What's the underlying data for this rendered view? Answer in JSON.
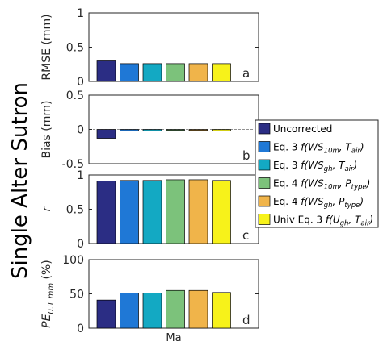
{
  "figure": {
    "side_title": "Single Alter Sutron"
  },
  "legend_labels": [
    {
      "plain": "Uncorrected"
    },
    {
      "prefix": "Eq. 3 ",
      "f": "f(WS",
      "sub1": "10m",
      "mid": ", T",
      "sub2": "air",
      "end": ")"
    },
    {
      "prefix": "Eq. 3 ",
      "f": "f(WS",
      "sub1": "gh",
      "mid": ", T",
      "sub2": "air",
      "end": ")"
    },
    {
      "prefix": "Eq. 4 ",
      "f": "f(WS",
      "sub1": "10m",
      "mid": ", P",
      "sub2": "type",
      "end": ")"
    },
    {
      "prefix": "Eq. 4 ",
      "f": "f(WS",
      "sub1": "gh",
      "mid": ", P",
      "sub2": "type",
      "end": ")"
    },
    {
      "prefix": "Univ Eq. 3 ",
      "f": "f(U",
      "sub1": "gh",
      "mid": ", T",
      "sub2": "air",
      "end": ")"
    }
  ],
  "colors": [
    "#2b2d84",
    "#1f78d6",
    "#13a9c3",
    "#7cc27b",
    "#f0b44a",
    "#f7f21a"
  ],
  "panels": [
    {
      "letter": "a",
      "ylabel": "RMSE (mm)",
      "ylabel_main": "",
      "ylabel_sub": "",
      "ylabel_end": "",
      "ylim": [
        0,
        1
      ],
      "yticks": [
        "0",
        "0.5",
        "1"
      ],
      "ytick_values": [
        0,
        0.5,
        1
      ]
    },
    {
      "letter": "b",
      "ylabel": "Bias (mm)",
      "ylabel_main": "",
      "ylabel_sub": "",
      "ylabel_end": "",
      "ylim": [
        -0.5,
        0.5
      ],
      "yticks": [
        "-0.5",
        "0",
        "0.5"
      ],
      "ytick_values": [
        -0.5,
        0,
        0.5
      ]
    },
    {
      "letter": "c",
      "ylabel": "r",
      "ylabel_main": "",
      "ylabel_sub": "",
      "ylabel_end": "",
      "ylim": [
        0,
        1
      ],
      "yticks": [
        "0",
        "0.5",
        "1"
      ],
      "ytick_values": [
        0,
        0.5,
        1
      ]
    },
    {
      "letter": "d",
      "ylabel": "",
      "ylabel_main": "PE",
      "ylabel_sub": "0.1 mm",
      "ylabel_end": " (%)",
      "ylim": [
        0,
        100
      ],
      "yticks": [
        "0",
        "50",
        "100"
      ],
      "ytick_values": [
        0,
        50,
        100
      ]
    }
  ],
  "x_category": "Ma",
  "chart_data": [
    {
      "type": "bar",
      "panel": "a",
      "ylabel": "RMSE (mm)",
      "ylim": [
        0,
        1
      ],
      "categories": [
        "Ma"
      ],
      "series": [
        {
          "name": "Uncorrected",
          "values": [
            0.3
          ]
        },
        {
          "name": "Eq. 3 f(WS10m, Tair)",
          "values": [
            0.26
          ]
        },
        {
          "name": "Eq. 3 f(WSgh, Tair)",
          "values": [
            0.26
          ]
        },
        {
          "name": "Eq. 4 f(WS10m, Ptype)",
          "values": [
            0.26
          ]
        },
        {
          "name": "Eq. 4 f(WSgh, Ptype)",
          "values": [
            0.26
          ]
        },
        {
          "name": "Univ Eq. 3 f(Ugh, Tair)",
          "values": [
            0.26
          ]
        }
      ]
    },
    {
      "type": "bar",
      "panel": "b",
      "ylabel": "Bias (mm)",
      "ylim": [
        -0.5,
        0.5
      ],
      "categories": [
        "Ma"
      ],
      "series": [
        {
          "name": "Uncorrected",
          "values": [
            -0.13
          ]
        },
        {
          "name": "Eq. 3 f(WS10m, Tair)",
          "values": [
            -0.02
          ]
        },
        {
          "name": "Eq. 3 f(WSgh, Tair)",
          "values": [
            -0.02
          ]
        },
        {
          "name": "Eq. 4 f(WS10m, Ptype)",
          "values": [
            -0.005
          ]
        },
        {
          "name": "Eq. 4 f(WSgh, Ptype)",
          "values": [
            -0.005
          ]
        },
        {
          "name": "Univ Eq. 3 f(Ugh, Tair)",
          "values": [
            -0.02
          ]
        }
      ]
    },
    {
      "type": "bar",
      "panel": "c",
      "ylabel": "r",
      "ylim": [
        0,
        1
      ],
      "categories": [
        "Ma"
      ],
      "series": [
        {
          "name": "Uncorrected",
          "values": [
            0.91
          ]
        },
        {
          "name": "Eq. 3 f(WS10m, Tair)",
          "values": [
            0.92
          ]
        },
        {
          "name": "Eq. 3 f(WSgh, Tair)",
          "values": [
            0.92
          ]
        },
        {
          "name": "Eq. 4 f(WS10m, Ptype)",
          "values": [
            0.93
          ]
        },
        {
          "name": "Eq. 4 f(WSgh, Ptype)",
          "values": [
            0.93
          ]
        },
        {
          "name": "Univ Eq. 3 f(Ugh, Tair)",
          "values": [
            0.92
          ]
        }
      ]
    },
    {
      "type": "bar",
      "panel": "d",
      "ylabel": "PE0.1 mm (%)",
      "ylim": [
        0,
        100
      ],
      "categories": [
        "Ma"
      ],
      "series": [
        {
          "name": "Uncorrected",
          "values": [
            41
          ]
        },
        {
          "name": "Eq. 3 f(WS10m, Tair)",
          "values": [
            51
          ]
        },
        {
          "name": "Eq. 3 f(WSgh, Tair)",
          "values": [
            51
          ]
        },
        {
          "name": "Eq. 4 f(WS10m, Ptype)",
          "values": [
            55
          ]
        },
        {
          "name": "Eq. 4 f(WSgh, Ptype)",
          "values": [
            55
          ]
        },
        {
          "name": "Univ Eq. 3 f(Ugh, Tair)",
          "values": [
            52
          ]
        }
      ]
    }
  ]
}
